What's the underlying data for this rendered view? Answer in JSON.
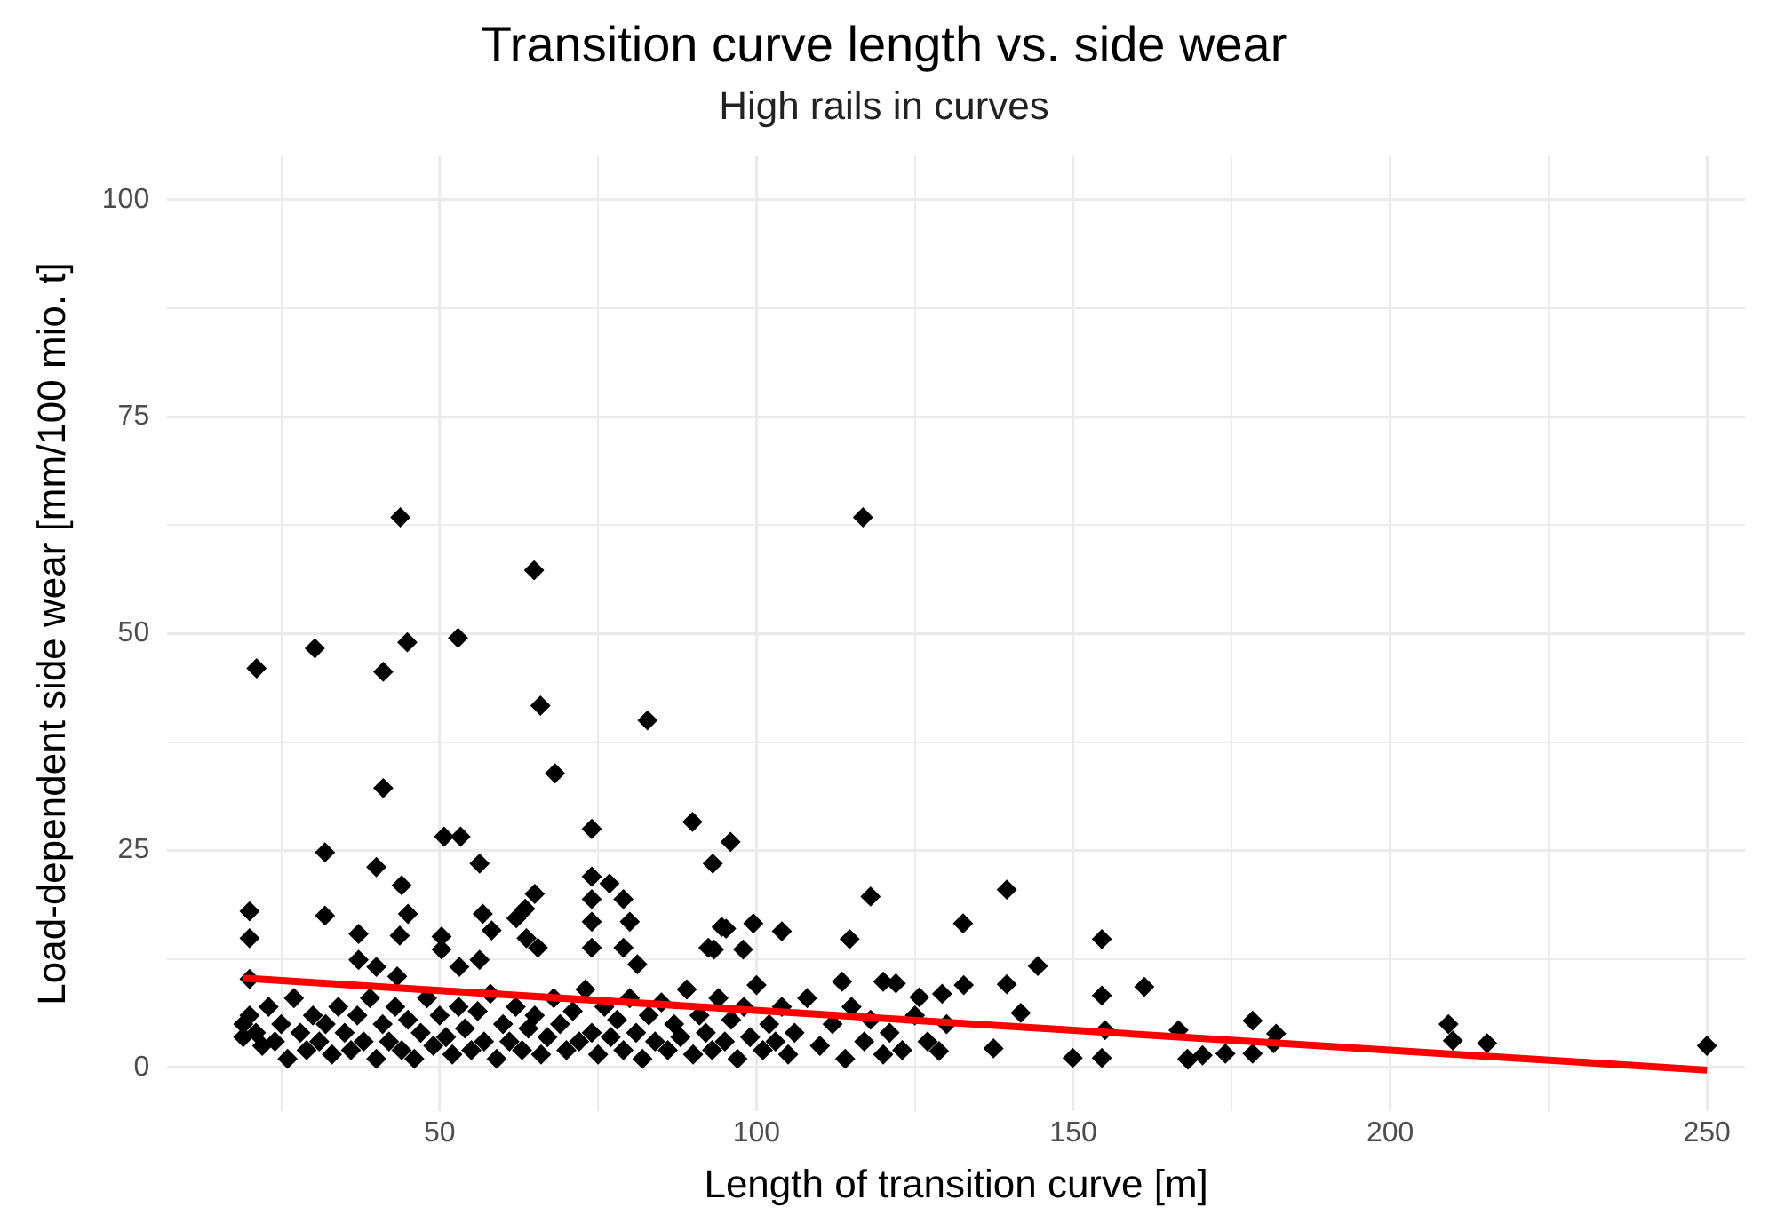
{
  "chart_data": {
    "type": "scatter",
    "title": "Transition curve length vs. side wear",
    "subtitle": "High rails in curves",
    "xlabel": "Length of transition curve [m]",
    "ylabel": "Load-dependent side wear [mm/100 mio. t]",
    "xlim": [
      7,
      256
    ],
    "xticks": [
      {
        "value": 25,
        "label": null
      },
      50,
      {
        "value": 75,
        "label": null
      },
      100,
      {
        "value": 125,
        "label": null
      },
      150,
      {
        "value": 175,
        "label": null
      },
      200,
      {
        "value": 225,
        "label": null
      },
      250
    ],
    "ylim": [
      -5,
      105
    ],
    "yticks": [
      0,
      {
        "value": 12.5,
        "label": null
      },
      25,
      {
        "value": 37.5,
        "label": null
      },
      50,
      {
        "value": 62.5,
        "label": null
      },
      75,
      {
        "value": 87.5,
        "label": null
      },
      100
    ],
    "grid": true,
    "legend": false,
    "series": [
      {
        "marker": "diamond",
        "color": "#000000",
        "x": [
          43.8,
          21.1,
          30.3,
          41.1,
          44.9,
          52.9,
          64.9,
          65.9,
          68.2,
          82.8,
          41.1,
          31.9,
          40,
          50.7,
          53.3,
          56.3,
          74,
          89.9,
          93.1,
          95.9,
          44,
          20,
          20,
          20,
          31.9,
          37.2,
          45,
          43.7,
          50.3,
          50.3,
          56.8,
          58.2,
          65,
          63.5,
          62.1,
          63.7,
          65.5,
          74,
          74,
          74,
          74,
          76.8,
          79,
          80,
          79,
          81.2,
          95.2,
          92.4,
          37.2,
          40,
          43.3,
          53.1,
          56.3,
          116.8,
          118,
          139.5,
          94.5,
          99.5,
          104,
          114.7,
          132.6,
          154.5,
          144.4,
          93.3,
          97.9,
          132.7,
          139.5,
          154.5,
          161.2,
          141.7,
          113.5,
          120,
          122,
          125.7,
          129.3,
          128.8,
          137.4,
          149.9,
          154.5,
          168,
          170.4,
          166.6,
          155,
          178.3,
          178.3,
          168.1,
          174,
          182,
          181.6,
          209.2,
          209.9,
          215.3,
          250,
          19,
          19,
          20,
          21,
          22,
          23,
          24,
          25,
          26,
          27,
          28,
          29,
          30,
          31,
          32,
          33,
          34,
          35,
          36,
          37,
          38,
          39,
          40,
          41,
          42,
          43,
          44,
          45,
          46,
          47,
          48,
          49,
          50,
          51,
          52,
          53,
          54,
          55,
          56,
          57,
          58,
          59,
          60,
          61,
          62,
          63,
          64,
          65,
          66,
          67,
          68,
          69,
          70,
          71,
          72,
          73,
          74,
          75,
          76,
          77,
          78,
          79,
          80,
          81,
          82,
          83,
          84,
          85,
          86,
          87,
          88,
          89,
          90,
          91,
          92,
          93,
          94,
          95,
          96,
          97,
          98,
          99,
          100,
          101,
          102,
          103,
          104,
          105,
          106,
          108,
          110,
          112,
          114,
          115,
          117,
          118,
          120,
          121,
          123,
          125,
          127,
          130
        ],
        "values": [
          63.4,
          46,
          48.3,
          45.6,
          49,
          49.5,
          57.3,
          41.7,
          33.9,
          40,
          32.2,
          24.8,
          23.1,
          26.6,
          26.6,
          23.5,
          27.5,
          28.3,
          23.5,
          26,
          21,
          18,
          14.9,
          10.2,
          17.5,
          15.4,
          17.7,
          15.2,
          15.1,
          13.6,
          17.7,
          15.8,
          20,
          18.3,
          17.2,
          14.9,
          13.8,
          22,
          19.4,
          16.8,
          13.8,
          21.2,
          19.4,
          16.8,
          13.8,
          11.9,
          16,
          13.8,
          12.4,
          11.6,
          10.5,
          11.6,
          12.4,
          63.4,
          19.7,
          20.5,
          16.2,
          16.6,
          15.7,
          14.8,
          16.6,
          14.8,
          11.7,
          13.6,
          13.6,
          9.5,
          9.6,
          8.3,
          9.3,
          6.3,
          9.9,
          9.9,
          9.7,
          8.1,
          8.5,
          1.9,
          2.2,
          1.1,
          1.1,
          1,
          1.4,
          4.3,
          4.3,
          5.4,
          1.6,
          0.9,
          1.6,
          3.9,
          2.8,
          5,
          3.1,
          2.8,
          2.5,
          5,
          3.5,
          6,
          4,
          2.5,
          7,
          3,
          5,
          1,
          8,
          4,
          2,
          6,
          3,
          5,
          1.5,
          7,
          4,
          2,
          6,
          3,
          8,
          1,
          5,
          3,
          7,
          2,
          5.5,
          1,
          4,
          8,
          2.5,
          6,
          3.5,
          1.5,
          7,
          4.5,
          2,
          6.5,
          3,
          8.5,
          1,
          5,
          3,
          7,
          2,
          4.5,
          6,
          1.5,
          3.5,
          8,
          5,
          2,
          6.5,
          3,
          9,
          4,
          1.5,
          7,
          3.5,
          5.5,
          2,
          8,
          4,
          1,
          6,
          3,
          7.5,
          2,
          5,
          3.5,
          9,
          1.5,
          6,
          4,
          2,
          8,
          3,
          5.5,
          1,
          7,
          3.5,
          9.5,
          2,
          5,
          3,
          7,
          1.5,
          4,
          8,
          2.5,
          5,
          1,
          7,
          3,
          5.5,
          1.5,
          4,
          2,
          6,
          3,
          5
        ]
      },
      {
        "type": "line",
        "color": "#ff0000",
        "x": [
          19,
          250
        ],
        "values": [
          10.3,
          -0.3
        ]
      }
    ]
  }
}
